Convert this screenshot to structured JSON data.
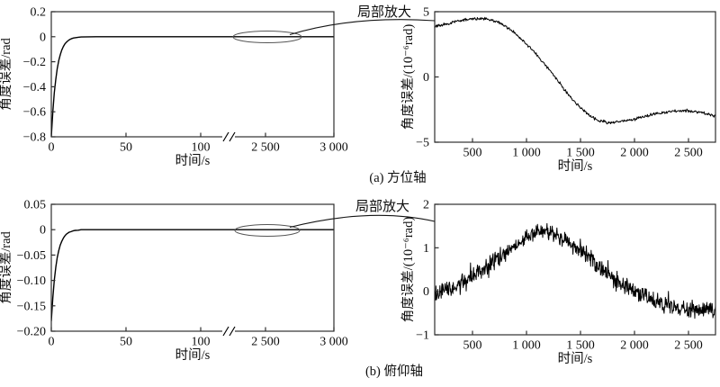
{
  "figure": {
    "zoom_callout_label": "局部放大",
    "panels": [
      {
        "caption": "(a) 方位轴"
      },
      {
        "caption": "(b) 俯仰轴"
      }
    ]
  },
  "chart_data": [
    {
      "id": "azimuth-full",
      "type": "line",
      "panel": "a",
      "xlabel": "时间/s",
      "ylabel": "角度误差/rad",
      "ylim": [
        -0.8,
        0.2
      ],
      "grid": false,
      "frame": "box",
      "axis_break": {
        "between": [
          100,
          2500
        ],
        "symbol": "//"
      },
      "x_ticks": {
        "values": [
          0,
          50,
          100,
          2500,
          3000
        ],
        "labels": [
          "0",
          "50",
          "100",
          "2 500",
          "3 000"
        ]
      },
      "y_ticks": {
        "values": [
          0.2,
          0,
          -0.2,
          -0.4,
          -0.6,
          -0.8
        ],
        "labels": [
          "0.2",
          "0",
          "−0.2",
          "−0.4",
          "−0.6",
          "−0.8"
        ]
      },
      "zoom_highlight": {
        "t": 2500,
        "y": 0,
        "label": "局部放大"
      },
      "series": [
        {
          "name": "角度误差",
          "points": [
            [
              0,
              -0.8
            ],
            [
              1,
              -0.6
            ],
            [
              2,
              -0.45
            ],
            [
              3,
              -0.34
            ],
            [
              4,
              -0.255
            ],
            [
              5,
              -0.19
            ],
            [
              6,
              -0.143
            ],
            [
              7,
              -0.107
            ],
            [
              8,
              -0.08
            ],
            [
              9,
              -0.06
            ],
            [
              10,
              -0.045
            ],
            [
              11,
              -0.034
            ],
            [
              12,
              -0.025
            ],
            [
              13,
              -0.019
            ],
            [
              14,
              -0.014
            ],
            [
              15,
              -0.01
            ],
            [
              16,
              -0.008
            ],
            [
              18,
              -0.004
            ],
            [
              20,
              -0.002
            ],
            [
              25,
              -0.001
            ],
            [
              30,
              0
            ],
            [
              50,
              0
            ],
            [
              100,
              0
            ],
            [
              1000,
              0
            ],
            [
              2500,
              0
            ],
            [
              3000,
              0
            ]
          ]
        }
      ]
    },
    {
      "id": "azimuth-zoom",
      "type": "line",
      "panel": "a",
      "xlabel": "时间/s",
      "ylabel": "角度误差/(10⁻⁶rad)",
      "ylim": [
        -5,
        5
      ],
      "xlim": [
        150,
        2750
      ],
      "grid": false,
      "frame": "box",
      "x_ticks": {
        "values": [
          500,
          1000,
          1500,
          2000,
          2500
        ],
        "labels": [
          "500",
          "1 000",
          "1 500",
          "2 000",
          "2 500"
        ]
      },
      "y_ticks": {
        "values": [
          5,
          0,
          -5
        ],
        "labels": [
          "5",
          "0",
          "−5"
        ]
      },
      "series": [
        {
          "name": "角度误差(局部放大)",
          "noise_amplitude": 0.09,
          "points": [
            [
              150,
              3.85
            ],
            [
              250,
              4.05
            ],
            [
              350,
              4.25
            ],
            [
              450,
              4.4
            ],
            [
              550,
              4.5
            ],
            [
              650,
              4.45
            ],
            [
              750,
              4.15
            ],
            [
              850,
              3.65
            ],
            [
              950,
              2.95
            ],
            [
              1050,
              2.1
            ],
            [
              1150,
              1.15
            ],
            [
              1250,
              0.15
            ],
            [
              1350,
              -0.95
            ],
            [
              1450,
              -1.95
            ],
            [
              1550,
              -2.75
            ],
            [
              1650,
              -3.3
            ],
            [
              1750,
              -3.5
            ],
            [
              1850,
              -3.45
            ],
            [
              1950,
              -3.3
            ],
            [
              2050,
              -3.1
            ],
            [
              2150,
              -2.9
            ],
            [
              2250,
              -2.75
            ],
            [
              2350,
              -2.65
            ],
            [
              2450,
              -2.6
            ],
            [
              2550,
              -2.65
            ],
            [
              2650,
              -2.8
            ],
            [
              2750,
              -3.0
            ]
          ]
        }
      ]
    },
    {
      "id": "pitch-full",
      "type": "line",
      "panel": "b",
      "xlabel": "时间/s",
      "ylabel": "角度误差/rad",
      "ylim": [
        -0.2,
        0.05
      ],
      "grid": false,
      "frame": "box",
      "axis_break": {
        "between": [
          100,
          2500
        ],
        "symbol": "//"
      },
      "x_ticks": {
        "values": [
          0,
          50,
          100,
          2500,
          3000
        ],
        "labels": [
          "0",
          "50",
          "100",
          "2 500",
          "3 000"
        ]
      },
      "y_ticks": {
        "values": [
          0.05,
          0,
          -0.05,
          -0.1,
          -0.15,
          -0.2
        ],
        "labels": [
          "0.05",
          "0",
          "−0.05",
          "−0.10",
          "−0.15",
          "−0.20"
        ]
      },
      "zoom_highlight": {
        "t": 2500,
        "y": 0,
        "label": "局部放大"
      },
      "series": [
        {
          "name": "角度误差",
          "points": [
            [
              0,
              -0.18
            ],
            [
              1,
              -0.134
            ],
            [
              2,
              -0.1
            ],
            [
              3,
              -0.074
            ],
            [
              4,
              -0.055
            ],
            [
              5,
              -0.041
            ],
            [
              6,
              -0.03
            ],
            [
              7,
              -0.023
            ],
            [
              8,
              -0.017
            ],
            [
              9,
              -0.0125
            ],
            [
              10,
              -0.009
            ],
            [
              11,
              -0.007
            ],
            [
              12,
              -0.005
            ],
            [
              13,
              -0.004
            ],
            [
              14,
              -0.003
            ],
            [
              15,
              -0.002
            ],
            [
              16,
              -0.0015
            ],
            [
              18,
              -0.001
            ],
            [
              20,
              0
            ],
            [
              25,
              0
            ],
            [
              30,
              0
            ],
            [
              50,
              0
            ],
            [
              100,
              0
            ],
            [
              1000,
              0
            ],
            [
              2500,
              0
            ],
            [
              3000,
              0
            ]
          ]
        }
      ]
    },
    {
      "id": "pitch-zoom",
      "type": "line",
      "panel": "b",
      "xlabel": "时间/s",
      "ylabel": "角度误差/(10⁻⁶rad)",
      "ylim": [
        -1,
        2
      ],
      "xlim": [
        150,
        2750
      ],
      "grid": false,
      "frame": "box",
      "x_ticks": {
        "values": [
          500,
          1000,
          1500,
          2000,
          2500
        ],
        "labels": [
          "500",
          "1 000",
          "1 500",
          "2 000",
          "2 500"
        ]
      },
      "y_ticks": {
        "values": [
          2,
          1,
          0,
          -1
        ],
        "labels": [
          "2",
          "1",
          "0",
          "−1"
        ]
      },
      "series": [
        {
          "name": "角度误差(局部放大)",
          "noise_amplitude": 0.16,
          "points": [
            [
              150,
              -0.05
            ],
            [
              250,
              0.02
            ],
            [
              350,
              0.12
            ],
            [
              450,
              0.26
            ],
            [
              550,
              0.42
            ],
            [
              650,
              0.58
            ],
            [
              750,
              0.78
            ],
            [
              850,
              0.98
            ],
            [
              950,
              1.18
            ],
            [
              1050,
              1.32
            ],
            [
              1100,
              1.38
            ],
            [
              1150,
              1.4
            ],
            [
              1250,
              1.33
            ],
            [
              1350,
              1.18
            ],
            [
              1450,
              1.0
            ],
            [
              1550,
              0.8
            ],
            [
              1650,
              0.6
            ],
            [
              1750,
              0.4
            ],
            [
              1850,
              0.22
            ],
            [
              1950,
              0.05
            ],
            [
              2050,
              -0.08
            ],
            [
              2150,
              -0.2
            ],
            [
              2250,
              -0.3
            ],
            [
              2350,
              -0.36
            ],
            [
              2450,
              -0.4
            ],
            [
              2550,
              -0.42
            ],
            [
              2650,
              -0.42
            ],
            [
              2750,
              -0.4
            ]
          ]
        }
      ]
    }
  ]
}
